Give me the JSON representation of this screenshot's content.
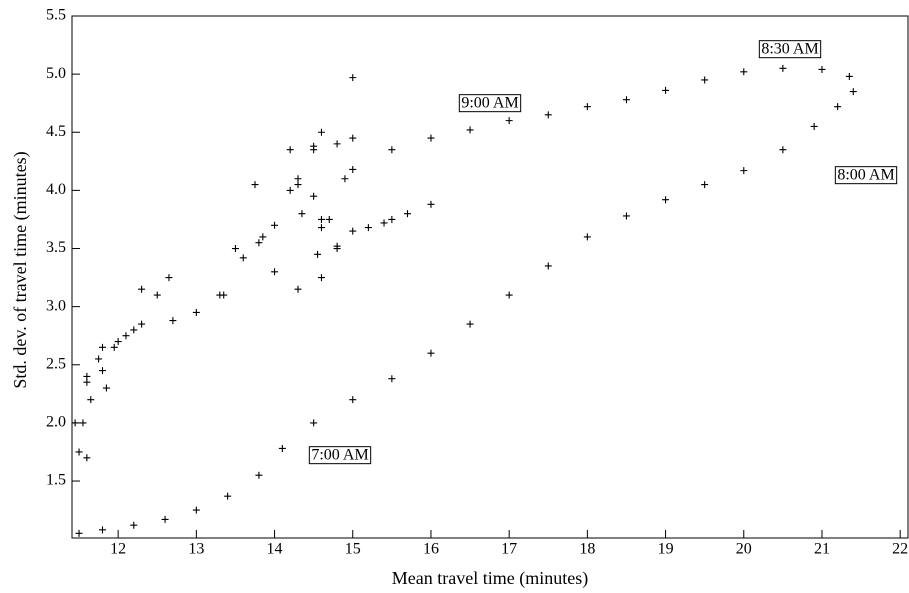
{
  "chart_data": {
    "type": "scatter",
    "x_label": "Mean travel time (minutes)",
    "y_label": "Std. dev. of travel time (minutes)",
    "xlim": [
      11.41,
      22.1
    ],
    "ylim": [
      1.01,
      5.5
    ],
    "xticks": [
      12,
      13,
      14,
      15,
      16,
      17,
      18,
      19,
      20,
      21,
      22
    ],
    "yticks": [
      1.5,
      {
        "value": 2,
        "label": "2.0"
      },
      2.5,
      {
        "value": 3,
        "label": "3.0"
      },
      3.5,
      {
        "value": 4,
        "label": "4.0"
      },
      4.5,
      {
        "value": 5,
        "label": "5.0"
      },
      5.5
    ],
    "marker": "+",
    "color": "#000000",
    "annotations": [
      "7:00 AM",
      "8:00 AM",
      "8:30 AM",
      "9:00 AM"
    ],
    "x": [
      11.5,
      11.8,
      12.2,
      12.6,
      13.0,
      13.4,
      13.8,
      14.1,
      14.5,
      15.0,
      15.5,
      16.0,
      16.5,
      17.0,
      17.5,
      18.0,
      18.5,
      19.0,
      19.5,
      20.0,
      20.5,
      20.9,
      21.2,
      21.4,
      21.35,
      21.0,
      20.5,
      20.0,
      19.5,
      19.0,
      18.5,
      18.0,
      17.5,
      17.0,
      16.5,
      16.0,
      15.5,
      15.0,
      14.5,
      14.0,
      13.6,
      13.35,
      13.5,
      13.75,
      13.85,
      14.0,
      14.3,
      14.6,
      14.8,
      14.6,
      14.3,
      14.2,
      14.5,
      14.8,
      14.5,
      14.3,
      14.35,
      14.6,
      15.0,
      15.4,
      15.7,
      16.0,
      15.5,
      15.2,
      14.8,
      14.55,
      14.7,
      14.9,
      15.0,
      15.0,
      14.6,
      14.2,
      13.8,
      13.3,
      13.0,
      12.7,
      12.65,
      12.5,
      12.3,
      12.0,
      11.8,
      11.65,
      11.85,
      12.1,
      12.3,
      12.2,
      11.95,
      11.75,
      11.6,
      11.55,
      11.6,
      11.5,
      11.45,
      11.6,
      11.8
    ],
    "values": [
      1.05,
      1.08,
      1.12,
      1.17,
      1.25,
      1.37,
      1.55,
      1.78,
      2.0,
      2.2,
      2.38,
      2.6,
      2.85,
      3.1,
      3.35,
      3.6,
      3.78,
      3.92,
      4.05,
      4.17,
      4.35,
      4.55,
      4.72,
      4.85,
      4.98,
      5.04,
      5.05,
      5.02,
      4.95,
      4.86,
      4.78,
      4.72,
      4.65,
      4.6,
      4.52,
      4.45,
      4.35,
      4.18,
      3.95,
      3.7,
      3.42,
      3.1,
      3.5,
      4.05,
      3.6,
      3.3,
      3.15,
      3.25,
      3.5,
      3.75,
      4.05,
      4.35,
      4.38,
      4.4,
      4.35,
      4.1,
      3.8,
      3.68,
      3.65,
      3.72,
      3.8,
      3.88,
      3.75,
      3.68,
      3.52,
      3.45,
      3.75,
      4.1,
      4.45,
      4.97,
      4.5,
      4.0,
      3.55,
      3.1,
      2.95,
      2.88,
      3.25,
      3.1,
      2.85,
      2.7,
      2.45,
      2.2,
      2.3,
      2.75,
      3.15,
      2.8,
      2.65,
      2.55,
      2.35,
      2.0,
      1.7,
      1.75,
      2.0,
      2.4,
      2.65
    ]
  }
}
